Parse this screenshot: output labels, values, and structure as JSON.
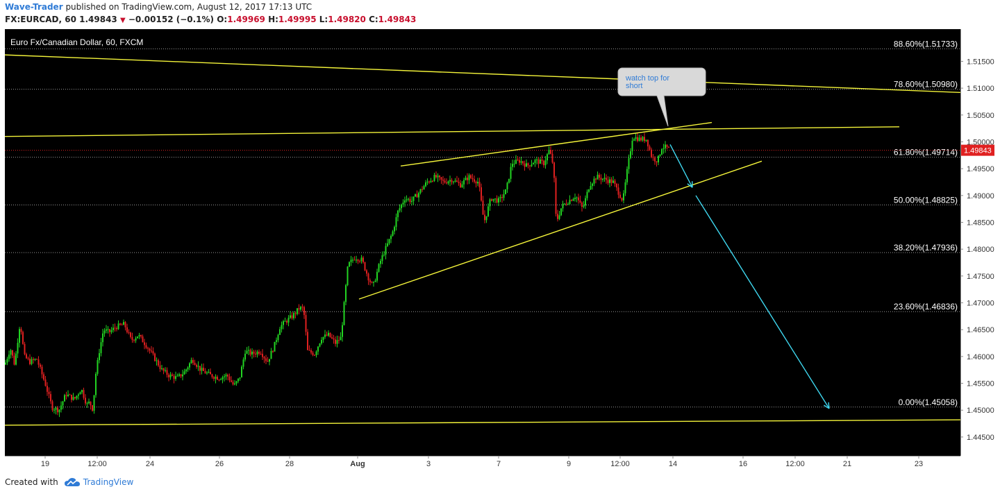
{
  "header": {
    "author": "Wave-Trader",
    "published_text": " published on TradingView.com, August 12, 2017 17:13 UTC",
    "symbol_line": "FX:EURCAD, 60",
    "last": "1.49843",
    "change": "−0.00152 (−0.1%)",
    "open_label": "O:",
    "open": "1.49969",
    "high_label": "H:",
    "high": "1.49995",
    "low_label": "L:",
    "low": "1.49820",
    "close_label": "C:",
    "close": "1.49843"
  },
  "footer": {
    "created_with": "Created with",
    "brand": "TradingView",
    "brand_icon": "tradingview-cloud-icon"
  },
  "colors": {
    "background": "#000000",
    "bull": "#22d422",
    "bear": "#e02020",
    "trendline": "#f5f53a",
    "projection": "#3fd8f0",
    "fib_line": "#9a9a9a",
    "price_tag": "#e02020"
  },
  "chart_data": {
    "type": "candlestick",
    "title": "Euro Fx/Canadian Dollar, 60, FXCM",
    "ylim": [
      1.4415,
      1.521
    ],
    "y_ticks": [
      "1.44500",
      "1.45000",
      "1.45500",
      "1.46000",
      "1.46500",
      "1.47000",
      "1.47500",
      "1.48000",
      "1.48500",
      "1.49000",
      "1.49500",
      "1.50000",
      "1.50500",
      "1.51000",
      "1.51500"
    ],
    "y_tick_values": [
      1.445,
      1.45,
      1.455,
      1.46,
      1.465,
      1.47,
      1.475,
      1.48,
      1.485,
      1.49,
      1.495,
      1.5,
      1.505,
      1.51,
      1.515
    ],
    "x_ticks": [
      "19",
      "12:00",
      "24",
      "26",
      "28",
      "Aug",
      "3",
      "7",
      "9",
      "12:00",
      "14",
      "16",
      "12:00",
      "21",
      "23"
    ],
    "x_tick_bold": [
      "Aug"
    ],
    "last_price": "1.49843",
    "last_price_value": 1.49843,
    "fib_levels": [
      {
        "label": "88.60%(1.51733)",
        "value": 1.51733
      },
      {
        "label": "78.60%(1.50980)",
        "value": 1.5098
      },
      {
        "label": "61.80%(1.49714)",
        "value": 1.49714
      },
      {
        "label": "50.00%(1.48825)",
        "value": 1.48825
      },
      {
        "label": "38.20%(1.47936)",
        "value": 1.47936
      },
      {
        "label": "23.60%(1.46836)",
        "value": 1.46836
      },
      {
        "label": "0.00%(1.45058)",
        "value": 1.45058
      }
    ],
    "annotation": "watch top for short",
    "price_path": [
      [
        0,
        1.4585
      ],
      [
        8,
        1.4615
      ],
      [
        14,
        1.4585
      ],
      [
        22,
        1.4665
      ],
      [
        28,
        1.46
      ],
      [
        36,
        1.459
      ],
      [
        46,
        1.4595
      ],
      [
        58,
        1.455
      ],
      [
        68,
        1.4505
      ],
      [
        78,
        1.45
      ],
      [
        88,
        1.453
      ],
      [
        100,
        1.452
      ],
      [
        110,
        1.454
      ],
      [
        118,
        1.451
      ],
      [
        122,
        1.4515
      ],
      [
        127,
        1.45
      ],
      [
        130,
        1.456
      ],
      [
        136,
        1.461
      ],
      [
        142,
        1.465
      ],
      [
        150,
        1.4645
      ],
      [
        160,
        1.4655
      ],
      [
        172,
        1.466
      ],
      [
        182,
        1.463
      ],
      [
        192,
        1.464
      ],
      [
        204,
        1.462
      ],
      [
        214,
        1.46
      ],
      [
        226,
        1.4575
      ],
      [
        236,
        1.4565
      ],
      [
        248,
        1.456
      ],
      [
        258,
        1.457
      ],
      [
        270,
        1.4595
      ],
      [
        282,
        1.4575
      ],
      [
        296,
        1.4565
      ],
      [
        308,
        1.456
      ],
      [
        320,
        1.4565
      ],
      [
        330,
        1.4545
      ],
      [
        338,
        1.456
      ],
      [
        346,
        1.461
      ],
      [
        356,
        1.4605
      ],
      [
        368,
        1.461
      ],
      [
        378,
        1.459
      ],
      [
        388,
        1.462
      ],
      [
        396,
        1.4655
      ],
      [
        404,
        1.4665
      ],
      [
        414,
        1.4675
      ],
      [
        424,
        1.469
      ],
      [
        430,
        1.469
      ],
      [
        436,
        1.461
      ],
      [
        446,
        1.4605
      ],
      [
        456,
        1.4635
      ],
      [
        466,
        1.464
      ],
      [
        476,
        1.4625
      ],
      [
        484,
        1.4635
      ],
      [
        488,
        1.469
      ],
      [
        494,
        1.477
      ],
      [
        504,
        1.4785
      ],
      [
        514,
        1.478
      ],
      [
        524,
        1.4745
      ],
      [
        530,
        1.473
      ],
      [
        540,
        1.4775
      ],
      [
        548,
        1.48
      ],
      [
        558,
        1.483
      ],
      [
        566,
        1.487
      ],
      [
        576,
        1.4895
      ],
      [
        586,
        1.489
      ],
      [
        596,
        1.4905
      ],
      [
        608,
        1.4925
      ],
      [
        620,
        1.4935
      ],
      [
        632,
        1.4925
      ],
      [
        644,
        1.493
      ],
      [
        656,
        1.492
      ],
      [
        668,
        1.4935
      ],
      [
        682,
        1.4925
      ],
      [
        690,
        1.485
      ],
      [
        700,
        1.4895
      ],
      [
        712,
        1.489
      ],
      [
        722,
        1.491
      ],
      [
        730,
        1.496
      ],
      [
        742,
        1.4965
      ],
      [
        752,
        1.4955
      ],
      [
        764,
        1.4965
      ],
      [
        776,
        1.496
      ],
      [
        784,
        1.4985
      ],
      [
        790,
        1.4955
      ],
      [
        794,
        1.485
      ],
      [
        802,
        1.488
      ],
      [
        812,
        1.489
      ],
      [
        822,
        1.49
      ],
      [
        832,
        1.4875
      ],
      [
        842,
        1.492
      ],
      [
        852,
        1.4935
      ],
      [
        864,
        1.493
      ],
      [
        876,
        1.4925
      ],
      [
        884,
        1.4905
      ],
      [
        890,
        1.489
      ],
      [
        896,
        1.4945
      ],
      [
        904,
        1.501
      ],
      [
        914,
        1.5005
      ],
      [
        924,
        1.5005
      ],
      [
        932,
        1.497
      ],
      [
        940,
        1.4965
      ],
      [
        946,
        1.499
      ],
      [
        952,
        1.499
      ],
      [
        958,
        1.4984
      ]
    ],
    "price_path_x_axis_note": "",
    "trendlines": [
      {
        "name": "",
        "from": [
          0,
          1.5162
        ],
        "to": [
          1376,
          1.5092
        ]
      },
      {
        "name": "",
        "from": [
          0,
          1.501
        ],
        "to": [
          1288,
          1.5028
        ]
      },
      {
        "name": "",
        "from": [
          570,
          1.4955
        ],
        "to": [
          1018,
          1.5036
        ]
      },
      {
        "name": "",
        "from": [
          510,
          1.4707
        ],
        "to": [
          1090,
          1.4964
        ]
      },
      {
        "name": "",
        "from": [
          0,
          1.4472
        ],
        "to": [
          1376,
          1.4482
        ]
      }
    ],
    "projection": [
      {
        "from": [
          958,
          1.4995
        ],
        "to": [
          990,
          1.4915
        ]
      },
      {
        "from": [
          995,
          1.49
        ],
        "to": [
          1187,
          1.4503
        ]
      }
    ],
    "x_tick_positions": [
      58,
      133,
      209,
      309,
      410,
      508,
      610,
      711,
      812,
      886,
      962,
      1063,
      1138,
      1213,
      1316
    ]
  }
}
